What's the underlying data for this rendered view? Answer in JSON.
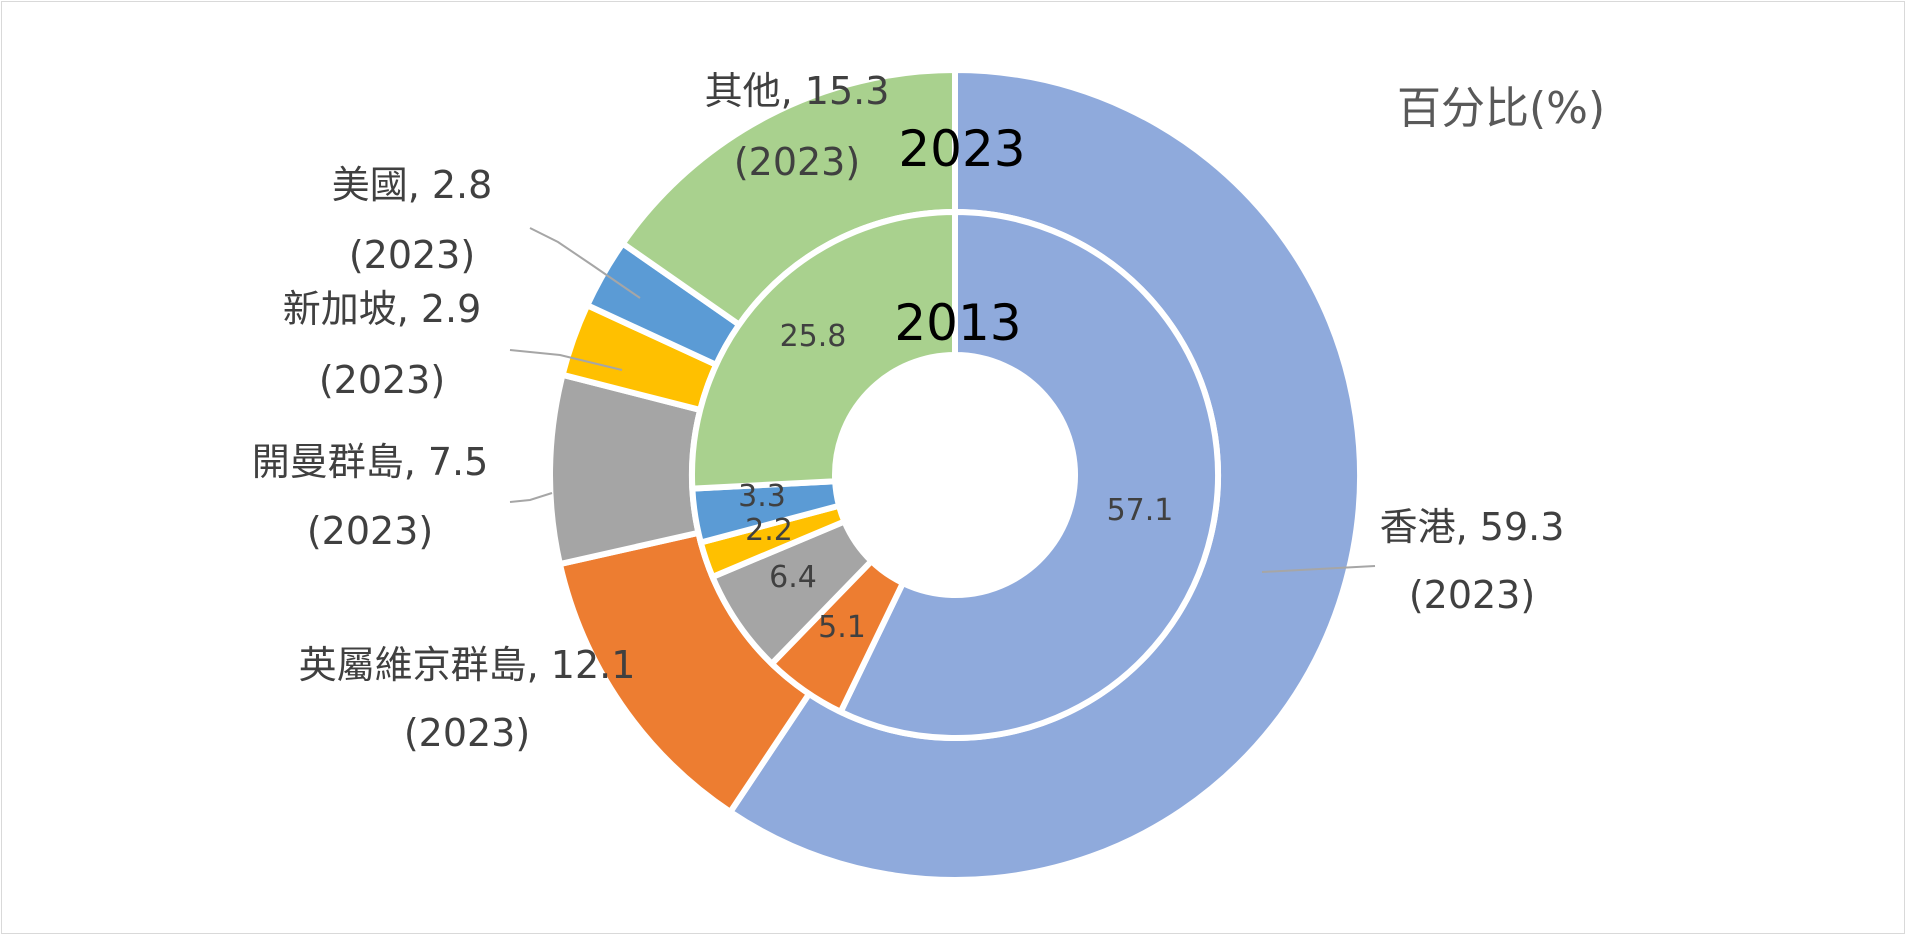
{
  "unit_label": "百分比(%)",
  "chart_data": {
    "type": "donut",
    "year_labels": {
      "outer": "2023",
      "inner": "2013"
    },
    "categories": [
      "香港",
      "英屬維京群島",
      "開曼群島",
      "新加坡",
      "美國",
      "其他"
    ],
    "colors": [
      "#8faadc",
      "#ed7d31",
      "#a5a5a5",
      "#ffc000",
      "#5b9bd5",
      "#a9d18e"
    ],
    "series": [
      {
        "name": "2023",
        "values": [
          59.3,
          12.1,
          7.5,
          2.9,
          2.8,
          15.3
        ],
        "labels": [
          [
            "香港, 59.3",
            "(2023)"
          ],
          [
            "英屬維京群島, 12.1",
            "(2023)"
          ],
          [
            "開曼群島, 7.5",
            "(2023)"
          ],
          [
            "新加坡, 2.9",
            "(2023)"
          ],
          [
            "美國, 2.8",
            "(2023)"
          ],
          [
            "其他, 15.3",
            "(2023)"
          ]
        ]
      },
      {
        "name": "2013",
        "values": [
          57.1,
          5.1,
          6.4,
          2.2,
          3.3,
          25.8
        ],
        "labels": [
          "57.1",
          "5.1",
          "6.4",
          "2.2",
          "3.3",
          "25.8"
        ]
      }
    ]
  }
}
